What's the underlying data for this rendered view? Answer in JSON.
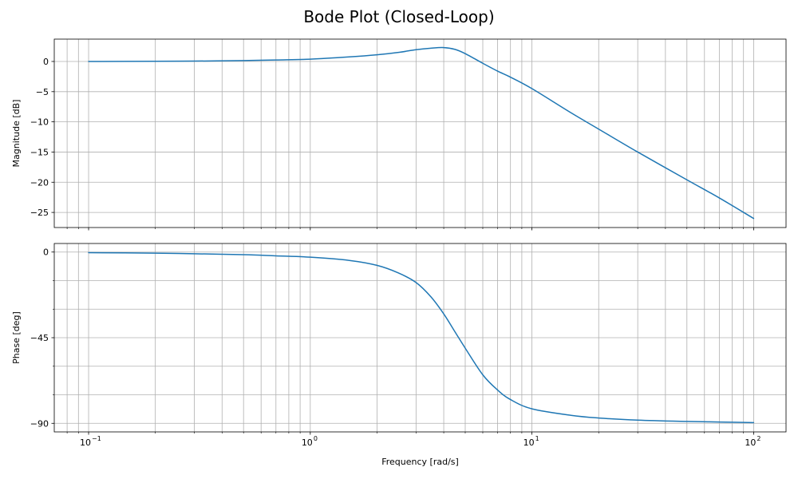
{
  "figure_title": "Bode Plot (Closed-Loop)",
  "chart_data": [
    {
      "type": "line",
      "panel": "magnitude",
      "title": "",
      "xlabel": "",
      "ylabel": "Magnitude [dB]",
      "xscale": "log",
      "xlim": [
        0.07,
        140
      ],
      "ylim": [
        -27.5,
        3.7
      ],
      "yticks": [
        0,
        -5,
        -10,
        -15,
        -20,
        -25
      ],
      "ytick_labels": [
        "0",
        "−5",
        "−10",
        "−15",
        "−20",
        "−25"
      ],
      "grid": "both",
      "color": "#1f77b4",
      "series": [
        {
          "x": [
            0.1,
            0.2,
            0.3,
            0.5,
            0.7,
            1.0,
            1.5,
            2.0,
            2.5,
            3.0,
            3.5,
            4.0,
            4.5,
            5.0,
            6.0,
            7.0,
            8.0,
            10,
            15,
            20,
            30,
            50,
            70,
            100
          ],
          "values": [
            0.0,
            0.03,
            0.06,
            0.14,
            0.25,
            0.38,
            0.75,
            1.1,
            1.5,
            1.95,
            2.2,
            2.3,
            2.0,
            1.3,
            -0.3,
            -1.6,
            -2.6,
            -4.5,
            -8.5,
            -11.2,
            -15.0,
            -19.6,
            -22.6,
            -26.0
          ]
        }
      ]
    },
    {
      "type": "line",
      "panel": "phase",
      "title": "",
      "xlabel": "Frequency [rad/s]",
      "ylabel": "Phase [deg]",
      "xscale": "log",
      "xlim": [
        0.07,
        140
      ],
      "ylim": [
        -94.5,
        4.5
      ],
      "yticks": [
        0,
        -45,
        -90
      ],
      "ytick_labels": [
        "0",
        "−45",
        "−90"
      ],
      "minor_yticks": [
        -15,
        -30,
        -60,
        -75
      ],
      "xtick_bases": [
        "10",
        "10",
        "10",
        "10"
      ],
      "xtick_exps": [
        "−1",
        "0",
        "1",
        "2"
      ],
      "grid": "both",
      "color": "#1f77b4",
      "series": [
        {
          "x": [
            0.1,
            0.2,
            0.3,
            0.5,
            0.7,
            1.0,
            1.5,
            2.0,
            2.5,
            3.0,
            3.5,
            4.0,
            4.5,
            5.0,
            6.0,
            7.0,
            8.0,
            10,
            15,
            20,
            30,
            50,
            70,
            100
          ],
          "values": [
            -0.3,
            -0.6,
            -0.9,
            -1.4,
            -2.0,
            -2.7,
            -4.4,
            -7.0,
            -11.0,
            -16.0,
            -23.5,
            -32.5,
            -42.0,
            -50.5,
            -64.5,
            -72.5,
            -77.5,
            -82.4,
            -85.8,
            -87.2,
            -88.3,
            -89.0,
            -89.3,
            -89.6
          ]
        }
      ]
    }
  ]
}
